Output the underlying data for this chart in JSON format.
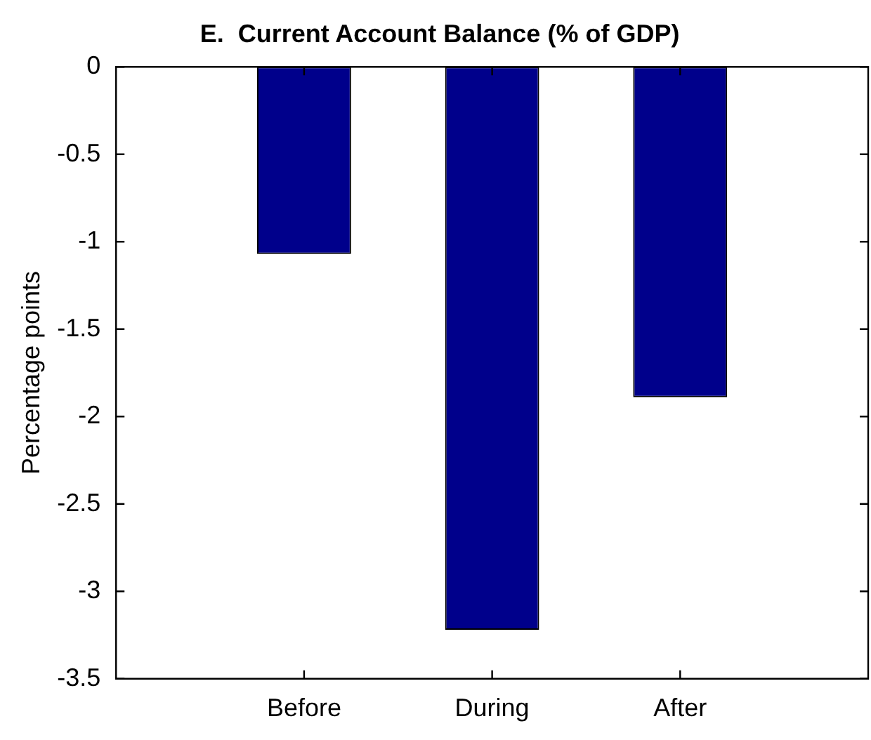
{
  "chart_data": {
    "type": "bar",
    "title": "E.  Current Account Balance (% of GDP)",
    "ylabel": "Percentage points",
    "categories": [
      "Before",
      "During",
      "After"
    ],
    "values": [
      -1.07,
      -3.22,
      -1.89
    ],
    "color": "#00008b",
    "ylim": [
      -3.5,
      0
    ],
    "yticks": [
      -3.5,
      -3,
      -2.5,
      -2,
      -1.5,
      -1,
      -0.5,
      0
    ],
    "grid": false
  }
}
